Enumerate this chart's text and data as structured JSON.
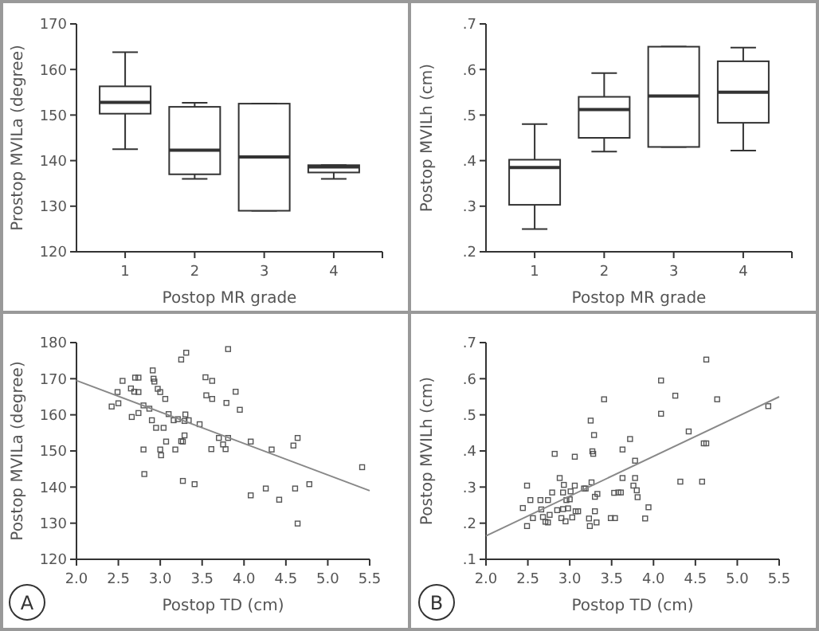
{
  "chart_data": [
    {
      "type": "box",
      "categories": [
        "1",
        "2",
        "3",
        "4"
      ],
      "xlabel": "Postop MR grade",
      "ylabel": "Prostop MVILa (degree)",
      "ylim": [
        120,
        170
      ],
      "yticks": [
        120,
        130,
        140,
        150,
        160,
        170
      ],
      "color": "#333333",
      "boxes": [
        {
          "low": 142.5,
          "q1": 150.3,
          "median": 152.8,
          "q3": 156.3,
          "high": 163.8
        },
        {
          "low": 136,
          "q1": 137,
          "median": 142.3,
          "q3": 151.8,
          "high": 152.7
        },
        {
          "low": 129,
          "q1": 129,
          "median": 140.8,
          "q3": 152.5,
          "high": 152.5
        },
        {
          "low": 136,
          "q1": 137.4,
          "median": 138.6,
          "q3": 139,
          "high": 139
        }
      ]
    },
    {
      "type": "box",
      "categories": [
        "1",
        "2",
        "3",
        "4"
      ],
      "xlabel": "Postop MR grade",
      "ylabel": "Postop MVILh (cm)",
      "ylim": [
        0.2,
        0.7
      ],
      "yticks": [
        {
          "value": 0.2,
          "label": ".2"
        },
        {
          "value": 0.3,
          "label": ".3"
        },
        {
          "value": 0.4,
          "label": ".4"
        },
        {
          "value": 0.5,
          "label": ".5"
        },
        {
          "value": 0.6,
          "label": ".6"
        },
        {
          "value": 0.7,
          "label": ".7"
        }
      ],
      "color": "#333333",
      "boxes": [
        {
          "low": 0.25,
          "q1": 0.303,
          "median": 0.385,
          "q3": 0.402,
          "high": 0.48
        },
        {
          "low": 0.42,
          "q1": 0.45,
          "median": 0.512,
          "q3": 0.54,
          "high": 0.592
        },
        {
          "low": 0.43,
          "q1": 0.43,
          "median": 0.542,
          "q3": 0.65,
          "high": 0.65
        },
        {
          "low": 0.422,
          "q1": 0.483,
          "median": 0.55,
          "q3": 0.618,
          "high": 0.648
        }
      ]
    },
    {
      "type": "scatter",
      "xlabel": "Postop TD (cm)",
      "ylabel": "Postop MVILa (degree)",
      "xlim": [
        2,
        5.5
      ],
      "xticks": [
        {
          "value": 2,
          "label": "2.0"
        },
        2.5,
        {
          "value": 3,
          "label": "3.0"
        },
        3.5,
        {
          "value": 4,
          "label": "4.0"
        },
        4.5,
        {
          "value": 5,
          "label": "5.0"
        },
        5.5
      ],
      "ylim": [
        120,
        180
      ],
      "yticks": [
        120,
        130,
        140,
        150,
        160,
        170,
        180
      ],
      "annotations": [
        "A"
      ],
      "series": [
        {
          "marker": "square",
          "color": "#555555",
          "x": [
            2.42,
            2.49,
            2.5,
            2.55,
            2.66,
            2.65,
            2.69,
            2.7,
            2.74,
            2.74,
            2.74,
            2.8,
            2.8,
            2.81,
            2.87,
            2.9,
            2.91,
            2.92,
            2.93,
            2.95,
            2.97,
            3.0,
            3.0,
            3.01,
            3.04,
            3.06,
            3.07,
            3.1,
            3.16,
            3.18,
            3.21,
            3.25,
            3.25,
            3.27,
            3.27,
            3.29,
            3.29,
            3.3,
            3.31,
            3.34,
            3.41,
            3.47,
            3.54,
            3.55,
            3.62,
            3.62,
            3.61,
            3.7,
            3.75,
            3.78,
            3.79,
            3.81,
            3.81,
            3.9,
            3.95,
            4.08,
            4.08,
            4.26,
            4.33,
            4.42,
            4.59,
            4.61,
            4.64,
            4.64,
            4.78,
            5.41
          ],
          "values": [
            162.3,
            166.3,
            163.2,
            169.4,
            159.4,
            167.3,
            166.4,
            170.3,
            170.3,
            166.3,
            160.5,
            162.6,
            150.4,
            143.6,
            161.7,
            158.5,
            172.3,
            170,
            169.2,
            156.4,
            167.2,
            166.3,
            150.4,
            148.8,
            156.4,
            164.4,
            152.6,
            160.2,
            158.5,
            150.4,
            158.8,
            175.3,
            152.7,
            152.6,
            141.7,
            158.3,
            154.3,
            160.1,
            177.2,
            158.5,
            140.8,
            157.4,
            170.4,
            165.4,
            169.4,
            164.4,
            150.5,
            153.6,
            151.8,
            150.5,
            163.3,
            153.6,
            178.2,
            166.4,
            161.4,
            152.6,
            137.7,
            139.6,
            150.4,
            136.5,
            151.5,
            139.6,
            153.6,
            129.9,
            140.8,
            145.5
          ]
        },
        {
          "type": "line",
          "marker": "none",
          "color": "#888888",
          "x": [
            2,
            5.5
          ],
          "values": [
            169.5,
            139
          ]
        }
      ]
    },
    {
      "type": "scatter",
      "xlabel": "Postop TD (cm)",
      "ylabel": "Postop MVILh (cm)",
      "xlim": [
        2,
        5.5
      ],
      "xticks": [
        {
          "value": 2,
          "label": "2.0"
        },
        2.5,
        {
          "value": 3,
          "label": "3.0"
        },
        3.5,
        {
          "value": 4,
          "label": "4.0"
        },
        4.5,
        {
          "value": 5,
          "label": "5.0"
        },
        5.5
      ],
      "ylim": [
        0.1,
        0.7
      ],
      "yticks": [
        {
          "value": 0.1,
          "label": ".1"
        },
        {
          "value": 0.2,
          "label": ".2"
        },
        {
          "value": 0.3,
          "label": ".3"
        },
        {
          "value": 0.4,
          "label": ".4"
        },
        {
          "value": 0.5,
          "label": ".5"
        },
        {
          "value": 0.6,
          "label": ".6"
        },
        {
          "value": 0.7,
          "label": ".7"
        }
      ],
      "annotations": [
        "B"
      ],
      "series": [
        {
          "marker": "square",
          "color": "#555555",
          "x": [
            2.44,
            2.49,
            2.49,
            2.53,
            2.56,
            2.65,
            2.66,
            2.68,
            2.71,
            2.74,
            2.74,
            2.76,
            2.79,
            2.82,
            2.85,
            2.88,
            2.9,
            2.92,
            2.92,
            2.93,
            2.95,
            2.96,
            2.98,
            3.0,
            3.01,
            3.03,
            3.06,
            3.06,
            3.07,
            3.1,
            3.17,
            3.19,
            3.23,
            3.24,
            3.25,
            3.26,
            3.27,
            3.28,
            3.29,
            3.3,
            3.3,
            3.32,
            3.33,
            3.41,
            3.49,
            3.53,
            3.54,
            3.58,
            3.61,
            3.63,
            3.63,
            3.72,
            3.76,
            3.78,
            3.78,
            3.81,
            3.8,
            3.9,
            3.94,
            4.09,
            4.09,
            4.26,
            4.32,
            4.42,
            4.58,
            4.6,
            4.63,
            4.63,
            4.76,
            5.37
          ],
          "values": [
            0.242,
            0.304,
            0.192,
            0.264,
            0.214,
            0.264,
            0.238,
            0.217,
            0.204,
            0.264,
            0.202,
            0.223,
            0.285,
            0.392,
            0.236,
            0.325,
            0.214,
            0.239,
            0.285,
            0.306,
            0.205,
            0.264,
            0.241,
            0.266,
            0.288,
            0.216,
            0.384,
            0.304,
            0.233,
            0.233,
            0.296,
            0.296,
            0.213,
            0.192,
            0.484,
            0.313,
            0.399,
            0.392,
            0.444,
            0.273,
            0.233,
            0.202,
            0.281,
            0.543,
            0.214,
            0.284,
            0.214,
            0.285,
            0.285,
            0.325,
            0.404,
            0.433,
            0.304,
            0.325,
            0.373,
            0.272,
            0.291,
            0.213,
            0.244,
            0.595,
            0.503,
            0.553,
            0.315,
            0.454,
            0.315,
            0.421,
            0.421,
            0.653,
            0.543,
            0.524
          ]
        },
        {
          "type": "line",
          "marker": "none",
          "color": "#888888",
          "x": [
            2,
            5.5
          ],
          "values": [
            0.165,
            0.55
          ]
        }
      ]
    }
  ]
}
